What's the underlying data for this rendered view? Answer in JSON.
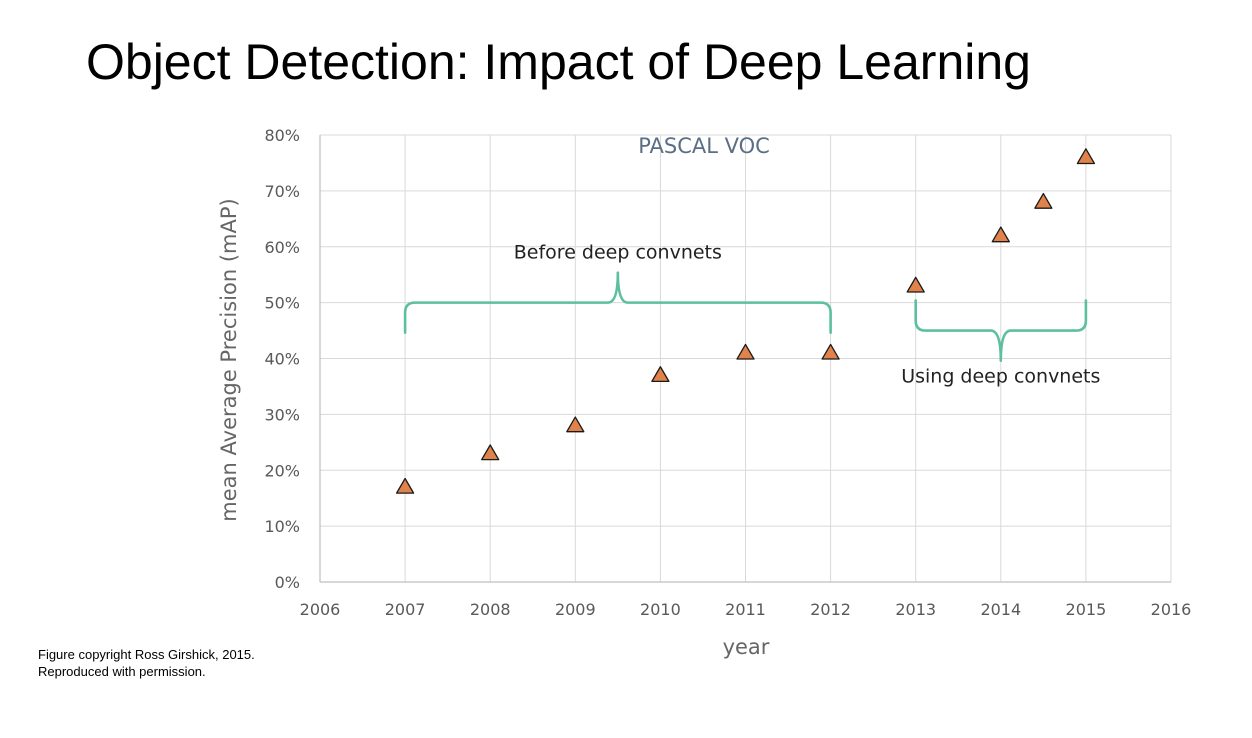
{
  "slide": {
    "title": "Object Detection: Impact of Deep Learning",
    "credit_line1": "Figure copyright Ross Girshick, 2015.",
    "credit_line2": "Reproduced with permission."
  },
  "chart_data": {
    "type": "scatter",
    "title": "PASCAL VOC",
    "xlabel": "year",
    "ylabel": "mean Average Precision (mAP)",
    "xlim": [
      2006,
      2016
    ],
    "ylim": [
      0,
      80
    ],
    "x_ticks": [
      "2006",
      "2007",
      "2008",
      "2009",
      "2010",
      "2011",
      "2012",
      "2013",
      "2014",
      "2015",
      "2016"
    ],
    "y_ticks": [
      "0%",
      "10%",
      "20%",
      "30%",
      "40%",
      "50%",
      "60%",
      "70%",
      "80%"
    ],
    "grid": true,
    "marker": "triangle",
    "marker_color": "#e0824a",
    "bracket_color": "#5cbfa0",
    "points": [
      {
        "x": 2007,
        "y": 17
      },
      {
        "x": 2008,
        "y": 23
      },
      {
        "x": 2009,
        "y": 28
      },
      {
        "x": 2010,
        "y": 37
      },
      {
        "x": 2011,
        "y": 41
      },
      {
        "x": 2012,
        "y": 41
      },
      {
        "x": 2013,
        "y": 53
      },
      {
        "x": 2014,
        "y": 62
      },
      {
        "x": 2014.5,
        "y": 68
      },
      {
        "x": 2015,
        "y": 76
      }
    ],
    "annotations": [
      {
        "text": "Before deep convnets",
        "x_start": 2007,
        "x_end": 2012,
        "y": 50,
        "direction": "up"
      },
      {
        "text": "Using deep convnets",
        "x_start": 2013,
        "x_end": 2015,
        "y": 45,
        "direction": "down"
      }
    ]
  }
}
